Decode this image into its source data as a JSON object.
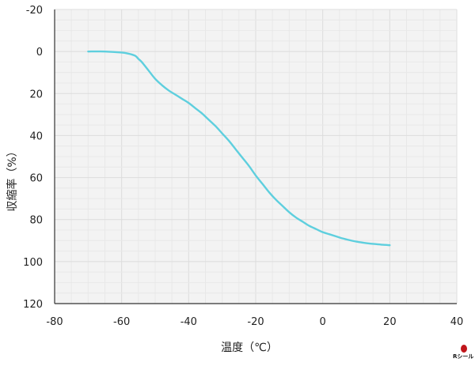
{
  "chart_data": {
    "type": "line",
    "title": "",
    "xlabel": "温度（℃）",
    "ylabel": "収縮率（%）",
    "xlim": [
      -80,
      40
    ],
    "ylim": [
      -20,
      120
    ],
    "y_inverted": true,
    "x_ticks": [
      "-80",
      "-60",
      "-40",
      "-20",
      "0",
      "20",
      "40"
    ],
    "y_ticks": [
      "-20",
      "0",
      "20",
      "40",
      "60",
      "80",
      "100",
      "120"
    ],
    "grid": true,
    "line_color": "#5ecfde",
    "series": [
      {
        "x": [
          -70,
          -65,
          -60,
          -58,
          -56,
          -55,
          -54,
          -52,
          -50,
          -48,
          -46,
          -44,
          -42,
          -40,
          -38,
          -36,
          -34,
          -32,
          -30,
          -28,
          -26,
          -24,
          -22,
          -20,
          -18,
          -16,
          -14,
          -12,
          -10,
          -8,
          -6,
          -4,
          -2,
          0,
          2,
          4,
          6,
          8,
          10,
          12,
          14,
          16,
          18,
          20
        ],
        "y": [
          0,
          0,
          0.5,
          1,
          2,
          3.5,
          5,
          9,
          13,
          16,
          18.5,
          20.5,
          22.5,
          24.5,
          27,
          29.5,
          32.5,
          35.5,
          39,
          42.5,
          46.5,
          50.5,
          54.5,
          59,
          63,
          67,
          70.5,
          73.5,
          76.5,
          79,
          81,
          83,
          84.5,
          86,
          87,
          88,
          89,
          89.8,
          90.5,
          91,
          91.4,
          91.7,
          92,
          92.2
        ]
      }
    ]
  },
  "watermark": {
    "text": "Rシール"
  }
}
